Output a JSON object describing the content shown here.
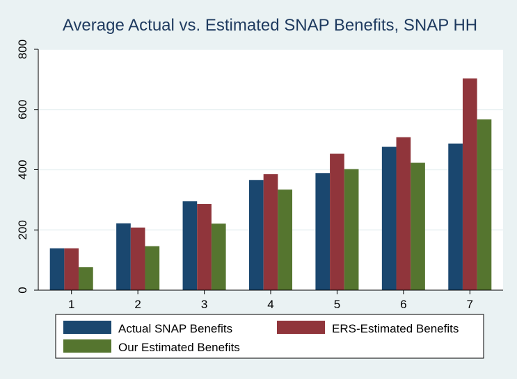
{
  "chart_data": {
    "type": "bar",
    "title": "Average Actual vs. Estimated SNAP Benefits, SNAP HH",
    "xlabel": "",
    "ylabel": "",
    "categories": [
      "1",
      "2",
      "3",
      "4",
      "5",
      "6",
      "7"
    ],
    "series": [
      {
        "name": "Actual SNAP Benefits",
        "color": "#1a476f",
        "values": [
          139,
          222,
          295,
          366,
          389,
          476,
          487
        ]
      },
      {
        "name": "ERS-Estimated Benefits",
        "color": "#90353b",
        "values": [
          139,
          208,
          286,
          385,
          453,
          508,
          703
        ]
      },
      {
        "name": "Our Estimated Benefits",
        "color": "#55752f",
        "values": [
          76,
          146,
          221,
          334,
          402,
          423,
          567
        ]
      }
    ],
    "ylim": [
      0,
      800
    ],
    "yticks": [
      0,
      200,
      400,
      600,
      800
    ],
    "grid": true,
    "legend_position": "bottom",
    "colors": {
      "background": "#eaf2f3",
      "plot_background": "#ffffff",
      "title": "#1e3a5f"
    }
  }
}
